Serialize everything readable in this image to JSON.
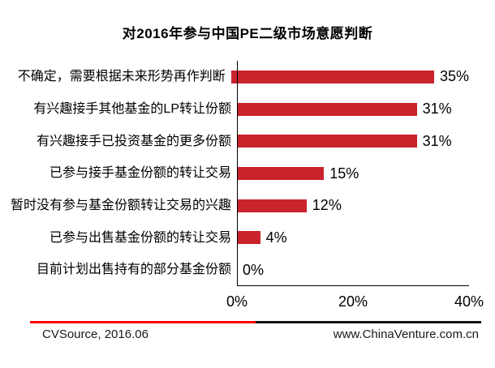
{
  "title": "对2016年参与中国PE二级市场意愿判断",
  "chart_data": {
    "type": "bar",
    "orientation": "horizontal",
    "title": "对2016年参与中国PE二级市场意愿判断",
    "categories": [
      "不确定，需要根据未来形势再作判断",
      "有兴趣接手其他基金的LP转让份额",
      "有兴趣接手已投资基金的更多份额",
      "已参与接手基金份额的转让交易",
      "暂时没有参与基金份额转让交易的兴趣",
      "已参与出售基金份额的转让交易",
      "目前计划出售持有的部分基金份额"
    ],
    "values": [
      35,
      31,
      31,
      15,
      12,
      4,
      0
    ],
    "value_labels": [
      "35%",
      "31%",
      "31%",
      "15%",
      "12%",
      "4%",
      "0%"
    ],
    "xlabel": "",
    "ylabel": "",
    "xlim": [
      0,
      40
    ],
    "x_ticks": [
      {
        "label": "0%",
        "value": 0
      },
      {
        "label": "20%",
        "value": 20
      },
      {
        "label": "40%",
        "value": 40
      }
    ],
    "grid": false,
    "legend_position": "none",
    "bar_color": "#C9232C",
    "axis_color": "#000000"
  },
  "footer": {
    "source": "CVSource, 2016.06",
    "website": "www.ChinaVenture.com.cn",
    "divider_left_color": "#FF0000",
    "divider_right_color": "#141414"
  }
}
